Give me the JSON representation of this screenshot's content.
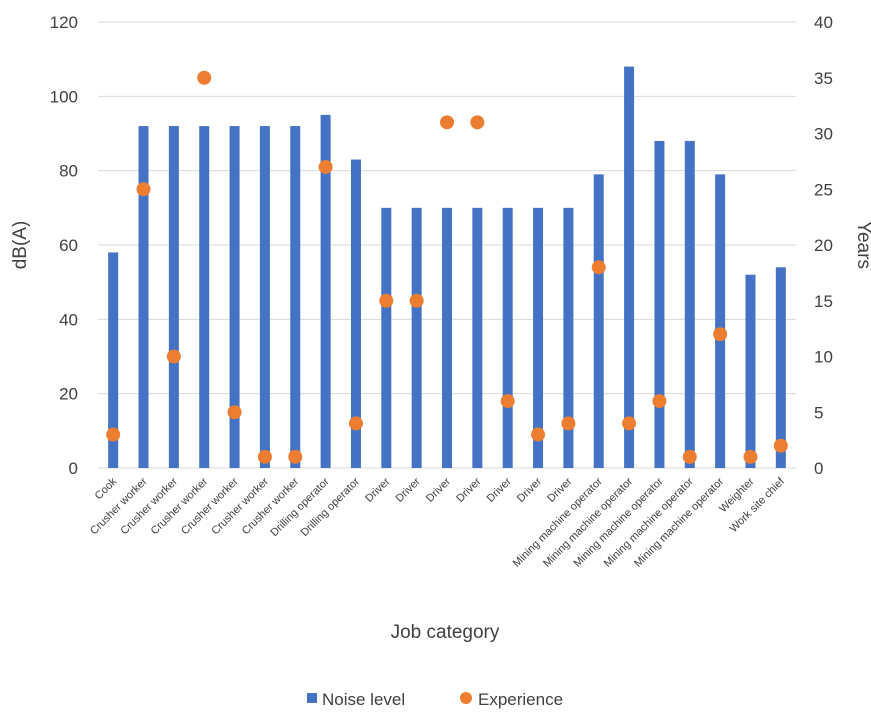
{
  "chart_data": {
    "type": "bar",
    "title": "",
    "xlabel": "Job category",
    "ylabel": "dB(A)",
    "y2label": "Years",
    "ylim": [
      0,
      120
    ],
    "y2lim": [
      0,
      40
    ],
    "yticks": [
      0,
      20,
      40,
      60,
      80,
      100,
      120
    ],
    "y2ticks": [
      0,
      5,
      10,
      15,
      20,
      25,
      30,
      35,
      40
    ],
    "grid": true,
    "legend_position": "bottom",
    "categories": [
      "Cook",
      "Crusher worker",
      "Crusher worker",
      "Crusher worker",
      "Crusher worker",
      "Crusher worker",
      "Crusher worker",
      "Drilling operator",
      "Drilling operator",
      "Driver",
      "Driver",
      "Driver",
      "Driver",
      "Driver",
      "Driver",
      "Driver",
      "Mining machine operator",
      "Mining machine operator",
      "Mining machine operator",
      "Mining machine operator",
      "Mining machine operator",
      "Weighter",
      "Work site chief"
    ],
    "series": [
      {
        "name": "Noise level",
        "kind": "bar",
        "axis": "left",
        "color": "#4472C4",
        "values": [
          58,
          92,
          92,
          92,
          92,
          92,
          92,
          95,
          83,
          70,
          70,
          70,
          70,
          70,
          70,
          70,
          79,
          108,
          88,
          88,
          79,
          52,
          54
        ]
      },
      {
        "name": "Experience",
        "kind": "scatter",
        "axis": "right",
        "color": "#ED7D31",
        "values": [
          3,
          25,
          10,
          35,
          5,
          1,
          1,
          27,
          4,
          15,
          15,
          31,
          31,
          6,
          3,
          4,
          18,
          4,
          6,
          1,
          12,
          1,
          2
        ]
      }
    ]
  }
}
